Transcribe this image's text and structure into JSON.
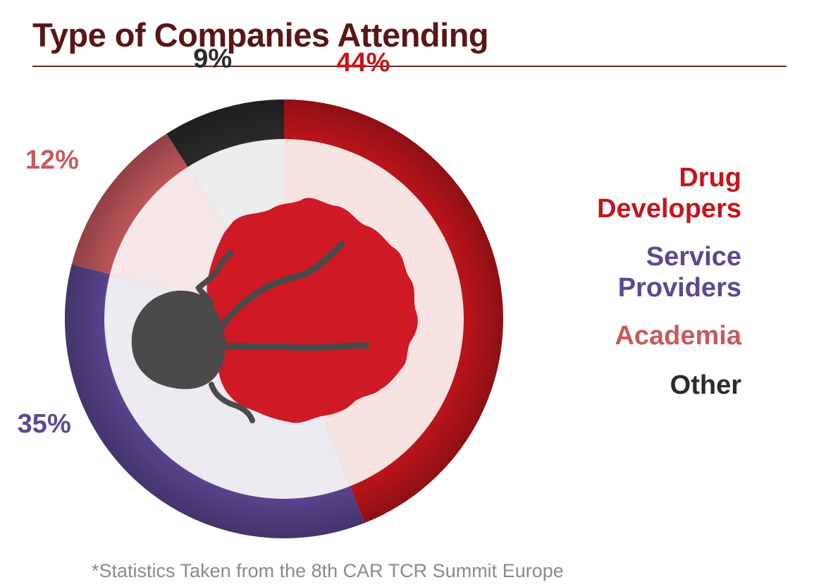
{
  "title": "Type of Companies Attending",
  "footnote": "*Statistics Taken from the 8th CAR TCR Summit Europe",
  "colors": {
    "title": "#5a1616",
    "drug_developers": "#c4151c",
    "service_providers": "#5e4794",
    "academia": "#c75a5e",
    "other": "#2b2b2b",
    "cell_body": "#cf1a25",
    "cell_nucleus": "#4a4a4a"
  },
  "chart_data": {
    "type": "pie",
    "title": "Type of Companies Attending",
    "series": [
      {
        "name": "Drug Developers",
        "value": 44,
        "label": "44%"
      },
      {
        "name": "Service Providers",
        "value": 35,
        "label": "35%"
      },
      {
        "name": "Academia",
        "value": 12,
        "label": "12%"
      },
      {
        "name": "Other",
        "value": 9,
        "label": "9%"
      }
    ],
    "legend_position": "right"
  },
  "legend": [
    {
      "lines": [
        "Drug",
        "Developers"
      ]
    },
    {
      "lines": [
        "Service",
        "Providers"
      ]
    },
    {
      "lines": [
        "Academia"
      ]
    },
    {
      "lines": [
        "Other"
      ]
    }
  ]
}
